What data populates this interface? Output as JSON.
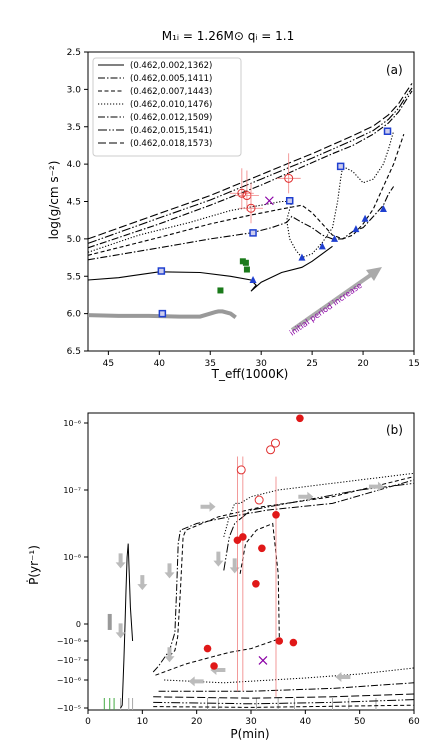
{
  "figure_title": "M₁ᵢ = 1.26M⊙ qᵢ = 1.1",
  "chart_data": [
    {
      "type": "line",
      "panel_label": "(a)",
      "xlabel": "T_eff(1000K)",
      "ylabel": "log(g/cm s⁻²)",
      "xlim": [
        47,
        15
      ],
      "ylim": [
        6.5,
        2.5
      ],
      "x_ticks": [
        "45",
        "40",
        "35",
        "30",
        "25",
        "20",
        "15"
      ],
      "y_ticks": [
        "2.5",
        "3.0",
        "3.5",
        "4.0",
        "4.5",
        "5.0",
        "5.5",
        "6.0",
        "6.5"
      ],
      "legend_position": "top-left",
      "annotation": "initial period increase",
      "series": [
        {
          "name": "(0.462,0.002,1362)",
          "style": "solid",
          "x": [
            47,
            44,
            40,
            36,
            33,
            31,
            30.5,
            31,
            30,
            28,
            26,
            25,
            24,
            23
          ],
          "y": [
            5.55,
            5.52,
            5.44,
            5.45,
            5.5,
            5.55,
            5.62,
            5.7,
            5.58,
            5.45,
            5.38,
            5.3,
            5.2,
            5.1
          ]
        },
        {
          "name": "(0.462,0.005,1411)",
          "style": "dashdot",
          "x": [
            47,
            40,
            35,
            31,
            29,
            27.5,
            27,
            26,
            25,
            24,
            23,
            22,
            21,
            20,
            19,
            18,
            17.5,
            17
          ],
          "y": [
            5.28,
            5.12,
            5.0,
            4.92,
            4.85,
            4.78,
            4.7,
            4.78,
            4.85,
            4.95,
            5.0,
            5.0,
            4.9,
            4.85,
            4.7,
            4.55,
            4.4,
            4.3
          ]
        },
        {
          "name": "(0.462,0.007,1443)",
          "style": "dashed",
          "x": [
            47,
            40,
            35,
            31,
            28,
            26,
            25,
            24,
            23,
            22,
            21,
            20,
            19,
            18,
            17,
            16.5,
            16
          ],
          "y": [
            5.22,
            4.98,
            4.8,
            4.68,
            4.6,
            4.55,
            4.65,
            4.8,
            4.95,
            5.0,
            4.95,
            4.8,
            4.6,
            4.3,
            4.0,
            3.8,
            3.6
          ]
        },
        {
          "name": "(0.462,0.010,1476)",
          "style": "dotted",
          "x": [
            47,
            42,
            37,
            33,
            30,
            28,
            27,
            27.5,
            27.2,
            26.6,
            26,
            25,
            24,
            23,
            22.5,
            22.2,
            22,
            21,
            20,
            19,
            18.5,
            18,
            17.5,
            17
          ],
          "y": [
            5.18,
            4.95,
            4.78,
            4.62,
            4.55,
            4.5,
            4.5,
            4.75,
            5.0,
            5.15,
            5.25,
            5.2,
            5.05,
            4.85,
            4.5,
            4.2,
            4.03,
            4.1,
            4.25,
            4.2,
            4.1,
            4.0,
            3.8,
            3.56
          ]
        },
        {
          "name": "(0.462,0.012,1509)",
          "style": "dashdot",
          "x": [
            47,
            40,
            35,
            30,
            27,
            25,
            23,
            21,
            19,
            17.5,
            16.5,
            15.8,
            15.2
          ],
          "y": [
            5.12,
            4.8,
            4.55,
            4.28,
            4.1,
            3.98,
            3.86,
            3.75,
            3.6,
            3.45,
            3.3,
            3.15,
            3.02
          ]
        },
        {
          "name": "(0.462,0.015,1541)",
          "style": "dashdot2",
          "x": [
            47,
            40,
            35,
            30,
            27,
            25,
            23,
            21,
            19,
            17.5,
            16.5,
            15.8,
            15.2
          ],
          "y": [
            5.06,
            4.72,
            4.48,
            4.2,
            4.03,
            3.92,
            3.8,
            3.68,
            3.55,
            3.4,
            3.25,
            3.1,
            2.98
          ]
        },
        {
          "name": "(0.462,0.018,1573)",
          "style": "longdash",
          "x": [
            47,
            40,
            35,
            30,
            27,
            25,
            23,
            21,
            19,
            17.5,
            16.5,
            15.8,
            15.2
          ],
          "y": [
            5.0,
            4.66,
            4.42,
            4.14,
            3.97,
            3.86,
            3.74,
            3.62,
            3.49,
            3.34,
            3.19,
            3.04,
            2.92
          ]
        },
        {
          "name": "",
          "style": "gray-thick",
          "x": [
            47,
            44,
            41,
            38,
            36,
            35,
            34.5,
            34.2,
            33.8,
            33,
            32.5
          ],
          "y": [
            6.02,
            6.03,
            6.03,
            6.04,
            6.04,
            6.0,
            5.98,
            5.97,
            5.97,
            6.0,
            6.05
          ]
        }
      ],
      "markers": {
        "blue_squares": [
          [
            39.8,
            5.43
          ],
          [
            39.7,
            6.0
          ],
          [
            30.8,
            4.92
          ],
          [
            27.2,
            4.49
          ],
          [
            22.2,
            4.03
          ],
          [
            17.6,
            3.56
          ]
        ],
        "blue_triangles": [
          [
            30.8,
            5.55
          ],
          [
            26.0,
            5.25
          ],
          [
            24.0,
            5.1
          ],
          [
            22.8,
            5.0
          ],
          [
            20.7,
            4.87
          ],
          [
            19.8,
            4.73
          ],
          [
            18.0,
            4.6
          ]
        ],
        "green_squares": [
          [
            31.8,
            5.3
          ],
          [
            31.5,
            5.32
          ],
          [
            31.4,
            5.41
          ],
          [
            34.0,
            5.69
          ]
        ],
        "red_open_circles": [
          [
            31.9,
            4.39
          ],
          [
            31.4,
            4.42
          ],
          [
            31.0,
            4.59
          ],
          [
            27.3,
            4.19
          ]
        ],
        "purple_cross": [
          [
            29.2,
            4.49
          ]
        ]
      }
    },
    {
      "type": "line",
      "panel_label": "(b)",
      "xlabel": "P(min)",
      "ylabel": "Ṗ(yr⁻¹)",
      "xlim": [
        0,
        60
      ],
      "y_ticks": [
        "10⁻⁶",
        "10⁻⁷",
        "10⁻⁸",
        "0",
        "−10⁻⁸",
        "−10⁻⁷",
        "−10⁻⁶",
        "−10⁻⁵"
      ],
      "x_ticks": [
        "0",
        "10",
        "20",
        "30",
        "40",
        "50",
        "60"
      ],
      "red_filled_circles": [
        [
          39,
          6.07
        ],
        [
          34.6,
          4.63
        ],
        [
          32.0,
          4.13
        ],
        [
          28.5,
          4.3
        ],
        [
          27.5,
          4.25
        ],
        [
          30.9,
          2.4
        ],
        [
          22.0,
          -4.4
        ],
        [
          23.2,
          -5.3
        ],
        [
          35.2,
          -4.0
        ],
        [
          37.8,
          -4.08
        ]
      ],
      "red_open_circles": [
        [
          28.2,
          5.3
        ],
        [
          31.5,
          4.85
        ],
        [
          33.6,
          5.6
        ],
        [
          34.5,
          5.7
        ]
      ],
      "purple_cross": [
        [
          32.2,
          -5.02
        ]
      ]
    }
  ]
}
